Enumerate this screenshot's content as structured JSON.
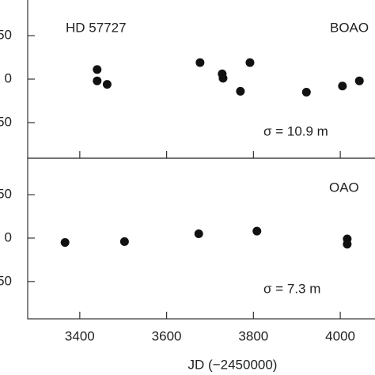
{
  "chart_data": [
    {
      "type": "scatter",
      "color": "#111111",
      "annotations": [
        "HD 57727",
        "BOAO",
        "σ = 10.9 m"
      ],
      "xlim": [
        3280,
        4080
      ],
      "ylim": [
        -91,
        91
      ],
      "yticks": [
        50,
        0,
        {
          "value": -50,
          "label": "50"
        }
      ],
      "series": [
        {
          "color": "#111111",
          "x": [
            3440,
            3440,
            3463,
            3677,
            3728,
            3730,
            3770,
            3792,
            3922,
            4005,
            4044
          ],
          "values": [
            11,
            -2,
            -6,
            19,
            6,
            1,
            -14,
            19,
            -15,
            -8,
            -2
          ]
        }
      ]
    },
    {
      "type": "scatter",
      "color": "#111111",
      "annotations": [
        "OAO",
        "σ = 7.3 m"
      ],
      "x_label": "JD (−2450000)",
      "xlim": [
        3280,
        4080
      ],
      "ylim": [
        -93,
        92
      ],
      "xticks": [
        3400,
        3600,
        3800,
        4000
      ],
      "yticks": [
        50,
        0,
        {
          "value": -50,
          "label": "50"
        }
      ],
      "series": [
        {
          "color": "#111111",
          "x": [
            3366,
            3503,
            3674,
            3808,
            4016,
            4016
          ],
          "values": [
            -5,
            -4,
            5,
            8,
            -1,
            -7
          ]
        }
      ]
    }
  ]
}
